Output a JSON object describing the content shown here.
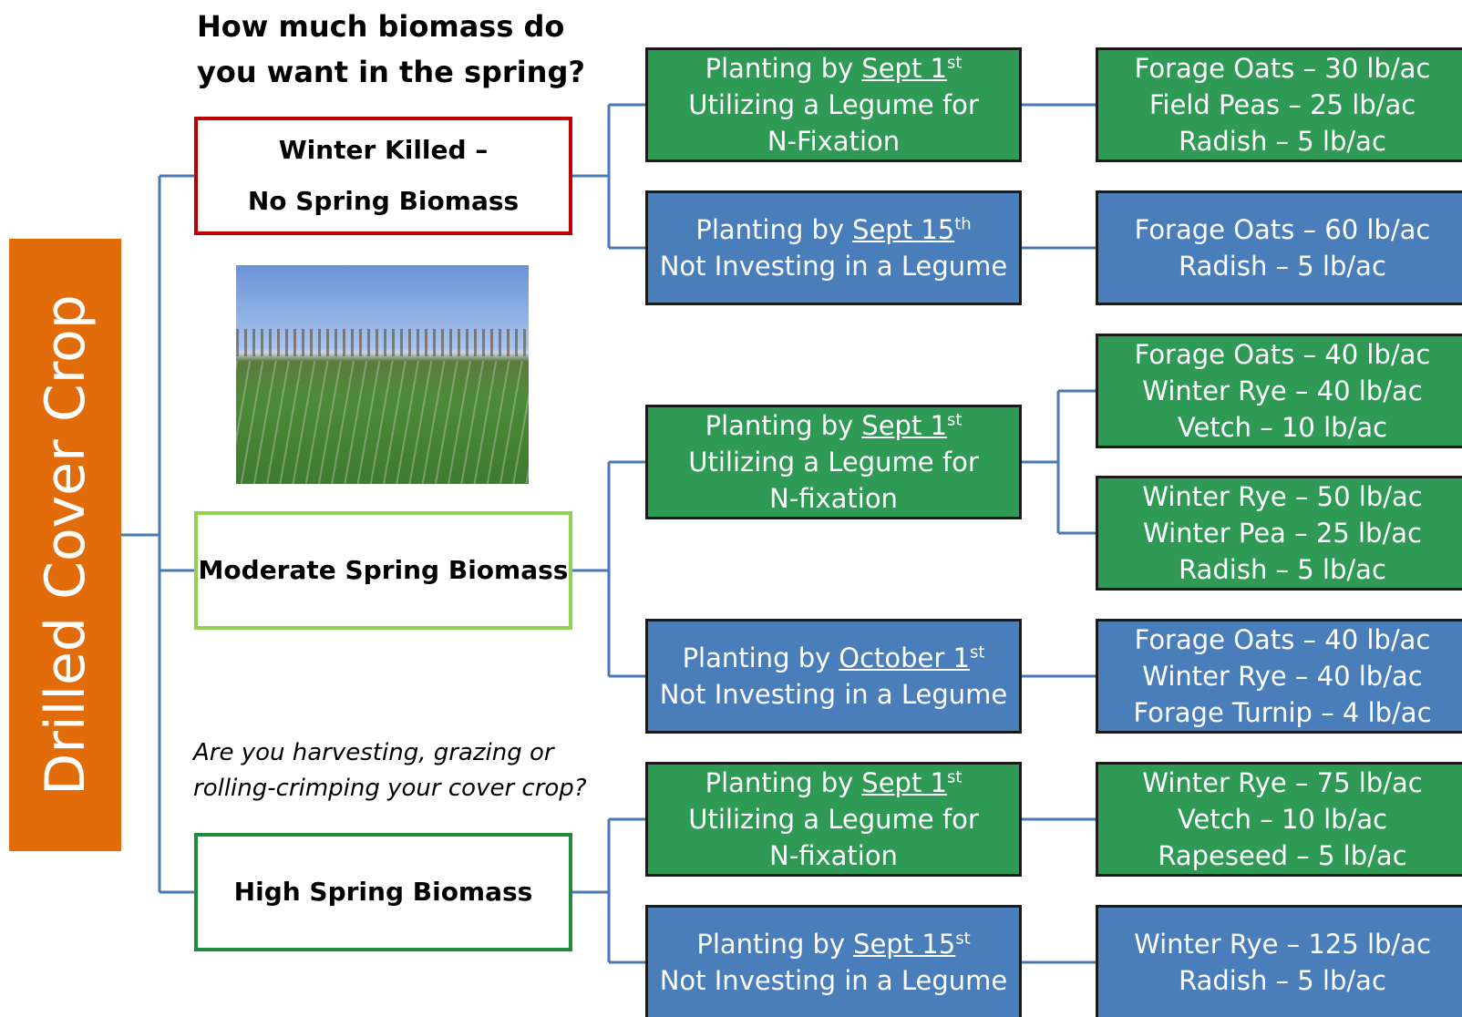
{
  "root": "Drilled Cover Crop",
  "question": [
    "How much biomass do",
    "you want in the spring?"
  ],
  "note": [
    "Are you harvesting, grazing or",
    "rolling-crimping your cover crop?"
  ],
  "categories": [
    {
      "label": [
        "Winter Killed –",
        "No Spring Biomass"
      ],
      "options": [
        {
          "prefix": "Planting by",
          "date": "Sept 1",
          "ordinal": "st",
          "lines": [
            "Utilizing a Legume for",
            "N-Fixation"
          ],
          "mixes": [
            [
              "Forage Oats – 30 lb/ac",
              "Field Peas – 25 lb/ac",
              "Radish – 5 lb/ac"
            ]
          ]
        },
        {
          "prefix": "Planting by",
          "date": "Sept 15",
          "ordinal": "th",
          "lines": [
            "Not Investing in a Legume"
          ],
          "mixes": [
            [
              "Forage Oats – 60 lb/ac",
              "Radish – 5 lb/ac"
            ]
          ]
        }
      ]
    },
    {
      "label": [
        "Moderate Spring Biomass"
      ],
      "options": [
        {
          "prefix": "Planting by",
          "date": "Sept 1",
          "ordinal": "st",
          "lines": [
            "Utilizing a Legume for",
            "N-fixation"
          ],
          "mixes": [
            [
              "Forage Oats – 40 lb/ac",
              "Winter Rye – 40 lb/ac",
              "Vetch – 10 lb/ac"
            ],
            [
              "Winter Rye – 50 lb/ac",
              "Winter Pea – 25 lb/ac",
              "Radish – 5 lb/ac"
            ]
          ]
        },
        {
          "prefix": "Planting by",
          "date": "October 1",
          "ordinal": "st",
          "lines": [
            "Not Investing in a Legume"
          ],
          "mixes": [
            [
              "Forage Oats – 40 lb/ac",
              "Winter Rye – 40 lb/ac",
              "Forage Turnip – 4 lb/ac"
            ]
          ]
        }
      ]
    },
    {
      "label": [
        "High Spring Biomass"
      ],
      "options": [
        {
          "prefix": "Planting by",
          "date": "Sept 1",
          "ordinal": "st",
          "lines": [
            "Utilizing a Legume for",
            "N-fixation"
          ],
          "mixes": [
            [
              "Winter Rye – 75 lb/ac",
              "Vetch – 10 lb/ac",
              "Rapeseed – 5 lb/ac"
            ]
          ]
        },
        {
          "prefix": "Planting by",
          "date": "Sept 15",
          "ordinal": "st",
          "lines": [
            "Not Investing in a Legume"
          ],
          "mixes": [
            [
              "Winter Rye – 125 lb/ac",
              "Radish – 5 lb/ac"
            ]
          ]
        }
      ]
    }
  ]
}
